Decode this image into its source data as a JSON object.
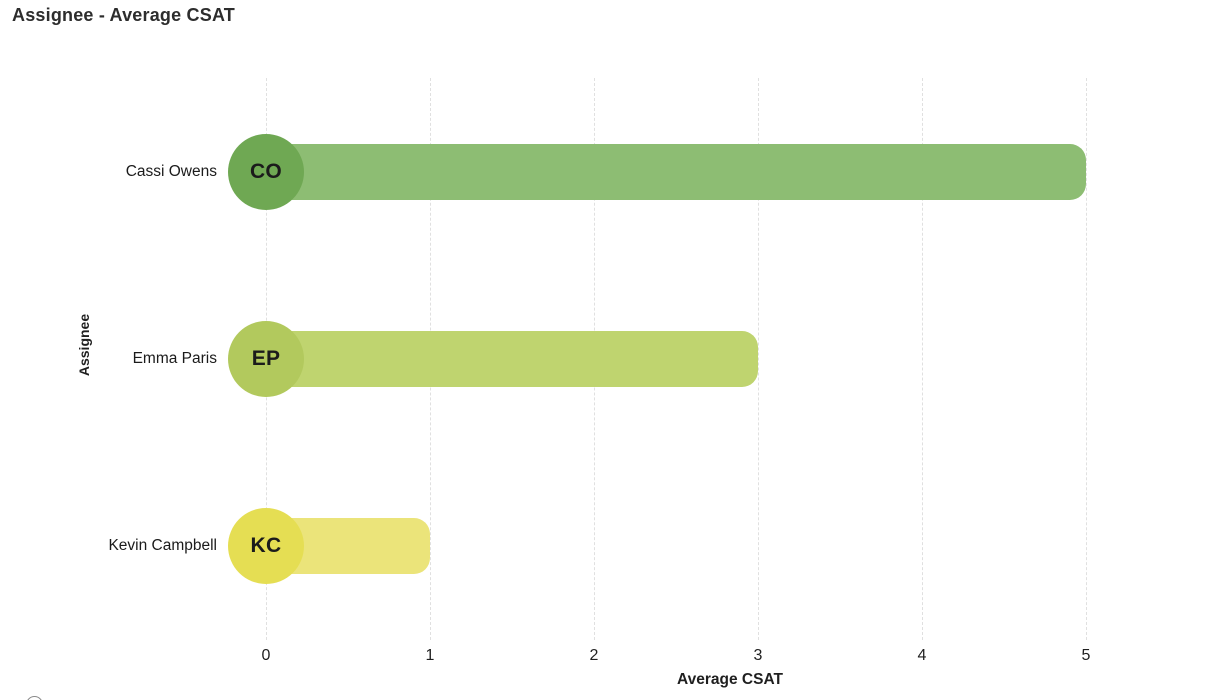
{
  "chart_data": {
    "type": "bar",
    "orientation": "horizontal",
    "title": "Assignee - Average CSAT",
    "xlabel": "Average CSAT",
    "ylabel": "Assignee",
    "xlim": [
      0,
      5
    ],
    "xticks": [
      "0",
      "1",
      "2",
      "3",
      "4",
      "5"
    ],
    "grid": "vertical-dashed",
    "legend": "none",
    "categories": [
      "Cassi Owens",
      "Emma Paris",
      "Kevin Campbell"
    ],
    "values": [
      5,
      3,
      1
    ],
    "rows": [
      {
        "label": "Cassi Owens",
        "initials": "CO",
        "value": 5,
        "bar_color": "#8DBD73",
        "avatar_color": "#6FA853"
      },
      {
        "label": "Emma Paris",
        "initials": "EP",
        "value": 3,
        "bar_color": "#BFD46F",
        "avatar_color": "#B2C95D"
      },
      {
        "label": "Kevin Campbell",
        "initials": "KC",
        "value": 1,
        "bar_color": "#EBE47A",
        "avatar_color": "#E5DE53"
      }
    ]
  }
}
